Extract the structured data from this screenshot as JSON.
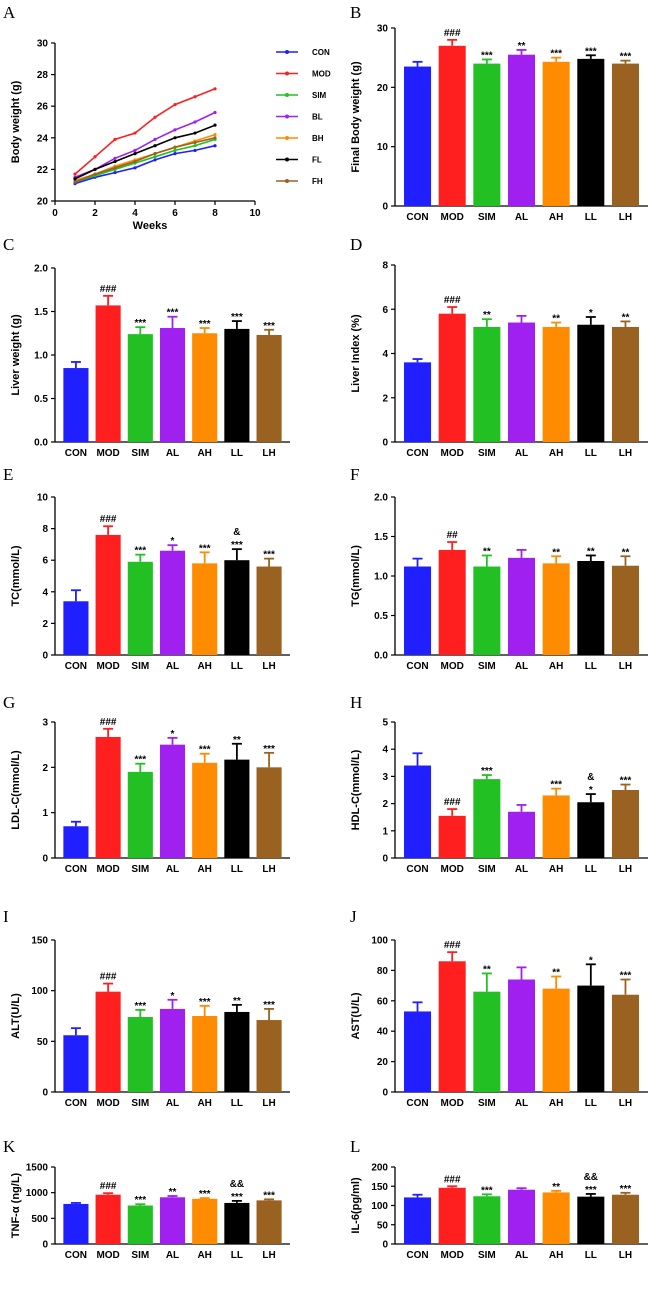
{
  "colors": {
    "CON": "#1f1fff",
    "MOD": "#ff1f1f",
    "SIM": "#22c022",
    "AL": "#a020f0",
    "AH": "#ff8c00",
    "LL": "#000000",
    "LH": "#9a6220"
  },
  "chart_data": [
    {
      "id": "A",
      "type": "line",
      "panel_label": "A",
      "xlabel": "Weeks",
      "ylabel": "Body weight (g)",
      "xlim": [
        0,
        10
      ],
      "ylim": [
        20,
        30
      ],
      "xticks": [
        "0",
        "2",
        "4",
        "6",
        "8",
        "10"
      ],
      "yticks": [
        "20",
        "22",
        "24",
        "26",
        "28",
        "30"
      ],
      "x": [
        1,
        2,
        3,
        4,
        5,
        6,
        7,
        8
      ],
      "legend_position": "right",
      "series": [
        {
          "name": "CON",
          "color": "#1f1fff",
          "values": [
            21.1,
            21.5,
            21.8,
            22.1,
            22.6,
            23.0,
            23.2,
            23.5
          ]
        },
        {
          "name": "MOD",
          "color": "#ff1f1f",
          "values": [
            21.7,
            22.8,
            23.9,
            24.3,
            25.3,
            26.1,
            26.6,
            27.1
          ]
        },
        {
          "name": "SIM",
          "color": "#22c022",
          "values": [
            21.2,
            21.6,
            22.0,
            22.4,
            22.8,
            23.2,
            23.5,
            23.9
          ]
        },
        {
          "name": "BL",
          "color": "#a020f0",
          "values": [
            21.5,
            22.0,
            22.7,
            23.2,
            23.9,
            24.5,
            25.0,
            25.6
          ]
        },
        {
          "name": "BH",
          "color": "#ff8c00",
          "values": [
            21.3,
            21.7,
            22.2,
            22.6,
            23.0,
            23.4,
            23.8,
            24.2
          ]
        },
        {
          "name": "FL",
          "color": "#000000",
          "values": [
            21.4,
            22.0,
            22.5,
            23.0,
            23.5,
            24.0,
            24.3,
            24.8
          ]
        },
        {
          "name": "FH",
          "color": "#9a6220",
          "values": [
            21.2,
            21.7,
            22.1,
            22.5,
            23.0,
            23.4,
            23.7,
            24.0
          ]
        }
      ]
    },
    {
      "id": "B",
      "type": "bar",
      "panel_label": "B",
      "ylabel": "Final Body weight (g)",
      "ylim": [
        0,
        30
      ],
      "yticks": [
        "0",
        "10",
        "20",
        "30"
      ],
      "categories": [
        "CON",
        "MOD",
        "SIM",
        "AL",
        "AH",
        "LL",
        "LH"
      ],
      "values": [
        23.5,
        27.0,
        24.0,
        25.5,
        24.3,
        24.8,
        24.0
      ],
      "errors": [
        0.8,
        1.0,
        0.7,
        0.8,
        0.7,
        0.6,
        0.5
      ],
      "annotations": [
        "",
        "###",
        "***",
        "**",
        "***",
        "***",
        "***"
      ]
    },
    {
      "id": "C",
      "type": "bar",
      "panel_label": "C",
      "ylabel": "Liver weight (g)",
      "ylim": [
        0,
        2.0
      ],
      "yticks": [
        "0.0",
        "0.5",
        "1.0",
        "1.5",
        "2.0"
      ],
      "categories": [
        "CON",
        "MOD",
        "SIM",
        "AL",
        "AH",
        "LL",
        "LH"
      ],
      "values": [
        0.85,
        1.57,
        1.24,
        1.31,
        1.25,
        1.3,
        1.23
      ],
      "errors": [
        0.07,
        0.11,
        0.08,
        0.13,
        0.06,
        0.09,
        0.06
      ],
      "annotations": [
        "",
        "###",
        "***",
        "***",
        "***",
        "***",
        "***"
      ]
    },
    {
      "id": "D",
      "type": "bar",
      "panel_label": "D",
      "ylabel": "Liver Index (%)",
      "ylim": [
        0,
        8
      ],
      "yticks": [
        "0",
        "2",
        "4",
        "6",
        "8"
      ],
      "categories": [
        "CON",
        "MOD",
        "SIM",
        "AL",
        "AH",
        "LL",
        "LH"
      ],
      "values": [
        3.6,
        5.8,
        5.2,
        5.4,
        5.2,
        5.3,
        5.2
      ],
      "errors": [
        0.15,
        0.3,
        0.35,
        0.3,
        0.2,
        0.35,
        0.25
      ],
      "annotations": [
        "",
        "###",
        "**",
        "",
        "**",
        "*",
        "**"
      ]
    },
    {
      "id": "E",
      "type": "bar",
      "panel_label": "E",
      "ylabel": "TC(mmol/L)",
      "ylim": [
        0,
        10
      ],
      "yticks": [
        "0",
        "2",
        "4",
        "6",
        "8",
        "10"
      ],
      "categories": [
        "CON",
        "MOD",
        "SIM",
        "AL",
        "AH",
        "LL",
        "LH"
      ],
      "values": [
        3.4,
        7.6,
        5.9,
        6.6,
        5.8,
        6.0,
        5.6
      ],
      "errors": [
        0.7,
        0.55,
        0.45,
        0.35,
        0.7,
        0.7,
        0.5
      ],
      "annotations": [
        "",
        "###",
        "***",
        "*",
        "***",
        "&\n***",
        "***"
      ]
    },
    {
      "id": "F",
      "type": "bar",
      "panel_label": "F",
      "ylabel": "TG(mmol/L)",
      "ylim": [
        0,
        2.0
      ],
      "yticks": [
        "0.0",
        "0.5",
        "1.0",
        "1.5",
        "2.0"
      ],
      "categories": [
        "CON",
        "MOD",
        "SIM",
        "AL",
        "AH",
        "LL",
        "LH"
      ],
      "values": [
        1.12,
        1.33,
        1.12,
        1.23,
        1.16,
        1.19,
        1.13
      ],
      "errors": [
        0.1,
        0.1,
        0.14,
        0.1,
        0.09,
        0.07,
        0.12
      ],
      "annotations": [
        "",
        "##",
        "**",
        "",
        "**",
        "**",
        "**"
      ]
    },
    {
      "id": "G",
      "type": "bar",
      "panel_label": "G",
      "ylabel": "LDL-C(mmol/L)",
      "ylim": [
        0,
        3
      ],
      "yticks": [
        "0",
        "1",
        "2",
        "3"
      ],
      "categories": [
        "CON",
        "MOD",
        "SIM",
        "AL",
        "AH",
        "LL",
        "LH"
      ],
      "values": [
        0.7,
        2.67,
        1.9,
        2.5,
        2.1,
        2.17,
        2.0
      ],
      "errors": [
        0.1,
        0.18,
        0.18,
        0.15,
        0.2,
        0.35,
        0.32
      ],
      "annotations": [
        "",
        "###",
        "***",
        "*",
        "***",
        "**",
        "***"
      ]
    },
    {
      "id": "H",
      "type": "bar",
      "panel_label": "H",
      "ylabel": "HDL-C(mmol/L)",
      "ylim": [
        0,
        5
      ],
      "yticks": [
        "0",
        "1",
        "2",
        "3",
        "4",
        "5"
      ],
      "categories": [
        "CON",
        "MOD",
        "SIM",
        "AL",
        "AH",
        "LL",
        "LH"
      ],
      "values": [
        3.4,
        1.55,
        2.9,
        1.7,
        2.3,
        2.05,
        2.5
      ],
      "errors": [
        0.45,
        0.25,
        0.15,
        0.25,
        0.25,
        0.3,
        0.2
      ],
      "annotations": [
        "",
        "###",
        "***",
        "",
        "***",
        "&\n*",
        "***"
      ]
    },
    {
      "id": "I",
      "type": "bar",
      "panel_label": "I",
      "ylabel": "ALT(U/L)",
      "ylim": [
        0,
        150
      ],
      "yticks": [
        "0",
        "50",
        "100",
        "150"
      ],
      "categories": [
        "CON",
        "MOD",
        "SIM",
        "AL",
        "AH",
        "LL",
        "LH"
      ],
      "values": [
        56,
        99,
        74,
        82,
        75,
        79,
        71
      ],
      "errors": [
        7,
        8,
        7,
        9,
        10,
        7,
        11
      ],
      "annotations": [
        "",
        "###",
        "***",
        "*",
        "***",
        "**",
        "***"
      ]
    },
    {
      "id": "J",
      "type": "bar",
      "panel_label": "J",
      "ylabel": "AST(U/L)",
      "ylim": [
        0,
        100
      ],
      "yticks": [
        "0",
        "20",
        "40",
        "60",
        "80",
        "100"
      ],
      "categories": [
        "CON",
        "MOD",
        "SIM",
        "AL",
        "AH",
        "LL",
        "LH"
      ],
      "values": [
        53,
        86,
        66,
        74,
        68,
        70,
        64
      ],
      "errors": [
        6,
        6,
        12,
        8,
        8,
        14,
        10
      ],
      "annotations": [
        "",
        "###",
        "**",
        "",
        "**",
        "*",
        "***"
      ]
    },
    {
      "id": "K",
      "type": "bar",
      "panel_label": "K",
      "ylabel": "TNF-α (ng/L)",
      "ylim": [
        0,
        1500
      ],
      "yticks": [
        "0",
        "500",
        "1000",
        "1500"
      ],
      "categories": [
        "CON",
        "MOD",
        "SIM",
        "AL",
        "AH",
        "LL",
        "LH"
      ],
      "values": [
        780,
        960,
        750,
        910,
        880,
        800,
        850
      ],
      "errors": [
        20,
        30,
        25,
        25,
        15,
        40,
        20
      ],
      "annotations": [
        "",
        "###",
        "***",
        "**",
        "***",
        "&&\n***",
        "***"
      ]
    },
    {
      "id": "L",
      "type": "bar",
      "panel_label": "L",
      "ylabel": "IL-6(pg/ml)",
      "ylim": [
        0,
        200
      ],
      "yticks": [
        "0",
        "50",
        "100",
        "150",
        "200"
      ],
      "categories": [
        "CON",
        "MOD",
        "SIM",
        "AL",
        "AH",
        "LL",
        "LH"
      ],
      "values": [
        121,
        146,
        124,
        141,
        134,
        123,
        128
      ],
      "errors": [
        7,
        4,
        5,
        4,
        4,
        7,
        5
      ],
      "annotations": [
        "",
        "###",
        "***",
        "",
        "**",
        "&&\n***",
        "***"
      ]
    }
  ]
}
